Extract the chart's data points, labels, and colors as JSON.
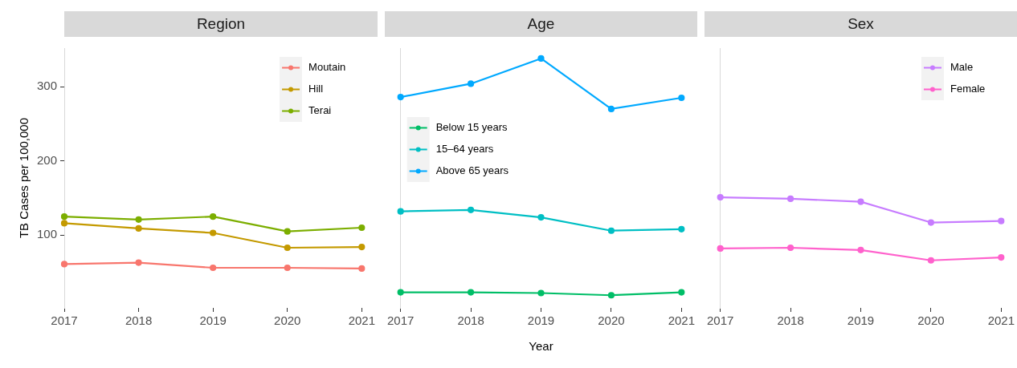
{
  "chart_data": [
    {
      "type": "line",
      "title": "Region",
      "ylabel": "TB Cases per 100,000",
      "categories": [
        "2017",
        "2018",
        "2019",
        "2020",
        "2021"
      ],
      "ylim": [
        2,
        352
      ],
      "yticks": [
        100,
        200,
        300
      ],
      "marker": "circle",
      "line_style": "solid",
      "legend": "top right",
      "series": [
        {
          "name": "Moutain",
          "color": "#f8766d",
          "values": [
            61,
            63,
            56,
            56,
            55
          ]
        },
        {
          "name": "Hill",
          "color": "#c49a00",
          "values": [
            116,
            109,
            103,
            83,
            84
          ]
        },
        {
          "name": "Terai",
          "color": "#7cae00",
          "values": [
            125,
            121,
            125,
            105,
            110
          ]
        }
      ]
    },
    {
      "type": "line",
      "title": "Age",
      "xlabel": "Year",
      "categories": [
        "2017",
        "2018",
        "2019",
        "2020",
        "2021"
      ],
      "ylim": [
        2,
        352
      ],
      "tick_labels": "x",
      "marker": "circle",
      "line_style": "solid",
      "legend": "left",
      "series": [
        {
          "name": "Below 15 years",
          "color": "#00be67",
          "values": [
            23,
            23,
            22,
            19,
            23
          ]
        },
        {
          "name": "15–64 years",
          "color": "#00bfc4",
          "values": [
            132,
            134,
            124,
            106,
            108
          ]
        },
        {
          "name": "Above 65 years",
          "color": "#00a9ff",
          "values": [
            286,
            304,
            338,
            270,
            285
          ]
        }
      ]
    },
    {
      "type": "line",
      "title": "Sex",
      "categories": [
        "2017",
        "2018",
        "2019",
        "2020",
        "2021"
      ],
      "ylim": [
        2,
        352
      ],
      "tick_labels": "x",
      "marker": "circle",
      "line_style": "solid",
      "legend": "top right",
      "series": [
        {
          "name": "Male",
          "color": "#c77cff",
          "values": [
            151,
            149,
            145,
            117,
            119
          ]
        },
        {
          "name": "Female",
          "color": "#ff61cc",
          "values": [
            82,
            83,
            80,
            66,
            70
          ]
        }
      ]
    }
  ]
}
